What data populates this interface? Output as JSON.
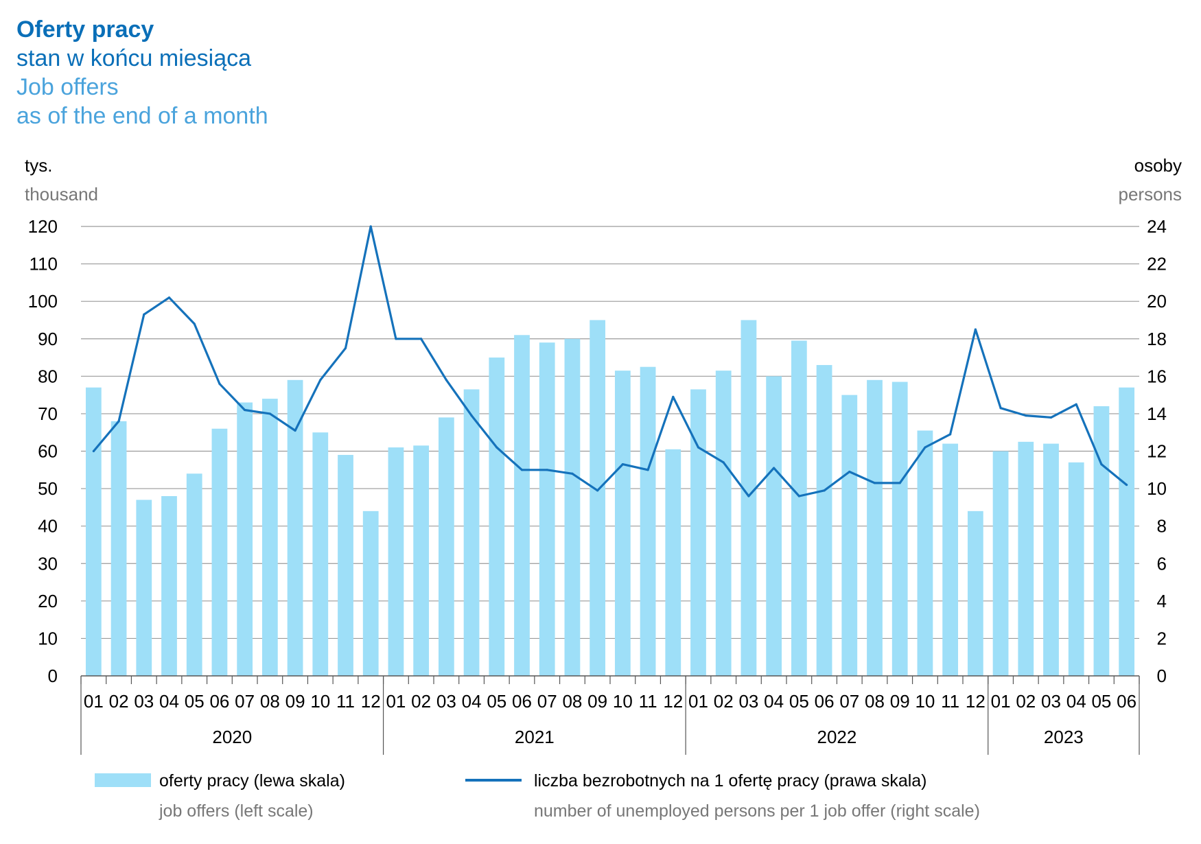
{
  "title": {
    "line1": "Oferty pracy",
    "line2": "stan w końcu miesiąca",
    "line3": "Job offers",
    "line4": "as of the end of a month"
  },
  "units": {
    "left_pl": "tys.",
    "left_en": "thousand",
    "right_pl": "osoby",
    "right_en": "persons"
  },
  "legend": {
    "bars_pl": "oferty pracy (lewa skala)",
    "bars_en": "job offers (left scale)",
    "line_pl": "liczba bezrobotnych na 1 ofertę pracy (prawa skala)",
    "line_en": "number of unemployed persons per 1 job offer (right scale)"
  },
  "colors": {
    "bars": "#9edff8",
    "line": "#1572bb",
    "grid": "#9a9a9a"
  },
  "chart_data": {
    "type": "bar",
    "categories": [
      "01",
      "02",
      "03",
      "04",
      "05",
      "06",
      "07",
      "08",
      "09",
      "10",
      "11",
      "12",
      "01",
      "02",
      "03",
      "04",
      "05",
      "06",
      "07",
      "08",
      "09",
      "10",
      "11",
      "12",
      "01",
      "02",
      "03",
      "04",
      "05",
      "06",
      "07",
      "08",
      "09",
      "10",
      "11",
      "12",
      "01",
      "02",
      "03",
      "04",
      "05",
      "06"
    ],
    "years": [
      {
        "label": "2020",
        "months": 12
      },
      {
        "label": "2021",
        "months": 12
      },
      {
        "label": "2022",
        "months": 12
      },
      {
        "label": "2023",
        "months": 6
      }
    ],
    "series": [
      {
        "name": "oferty pracy (lewa skala)",
        "axis": "left",
        "type": "bar",
        "values": [
          77,
          68,
          47,
          48,
          54,
          66,
          73,
          74,
          79,
          65,
          59,
          44,
          61,
          61.5,
          69,
          76.5,
          85,
          91,
          89,
          90,
          95,
          81.5,
          82.5,
          60.5,
          76.5,
          81.5,
          95,
          80,
          89.5,
          83,
          75,
          79,
          78.5,
          65.5,
          62,
          44,
          60,
          62.5,
          62,
          57,
          72,
          77
        ]
      },
      {
        "name": "liczba bezrobotnych na 1 ofertę pracy (prawa skala)",
        "axis": "right",
        "type": "line",
        "values": [
          12.0,
          13.6,
          19.3,
          20.2,
          18.8,
          15.6,
          14.2,
          14.0,
          13.1,
          15.8,
          17.5,
          24.0,
          18.0,
          18.0,
          15.8,
          13.9,
          12.2,
          11.0,
          11.0,
          10.8,
          9.9,
          11.3,
          11.0,
          14.9,
          12.2,
          11.4,
          9.6,
          11.1,
          9.6,
          9.9,
          10.9,
          10.3,
          10.3,
          12.2,
          12.9,
          18.5,
          14.3,
          13.9,
          13.8,
          14.5,
          11.3,
          10.2
        ]
      }
    ],
    "y_left": {
      "min": 0,
      "max": 120,
      "ticks": [
        0,
        10,
        20,
        30,
        40,
        50,
        60,
        70,
        80,
        90,
        100,
        110,
        120
      ]
    },
    "y_right": {
      "min": 0,
      "max": 24,
      "ticks": [
        0,
        2,
        4,
        6,
        8,
        10,
        12,
        14,
        16,
        18,
        20,
        22,
        24
      ]
    },
    "grid": true,
    "legend_position": "bottom"
  }
}
